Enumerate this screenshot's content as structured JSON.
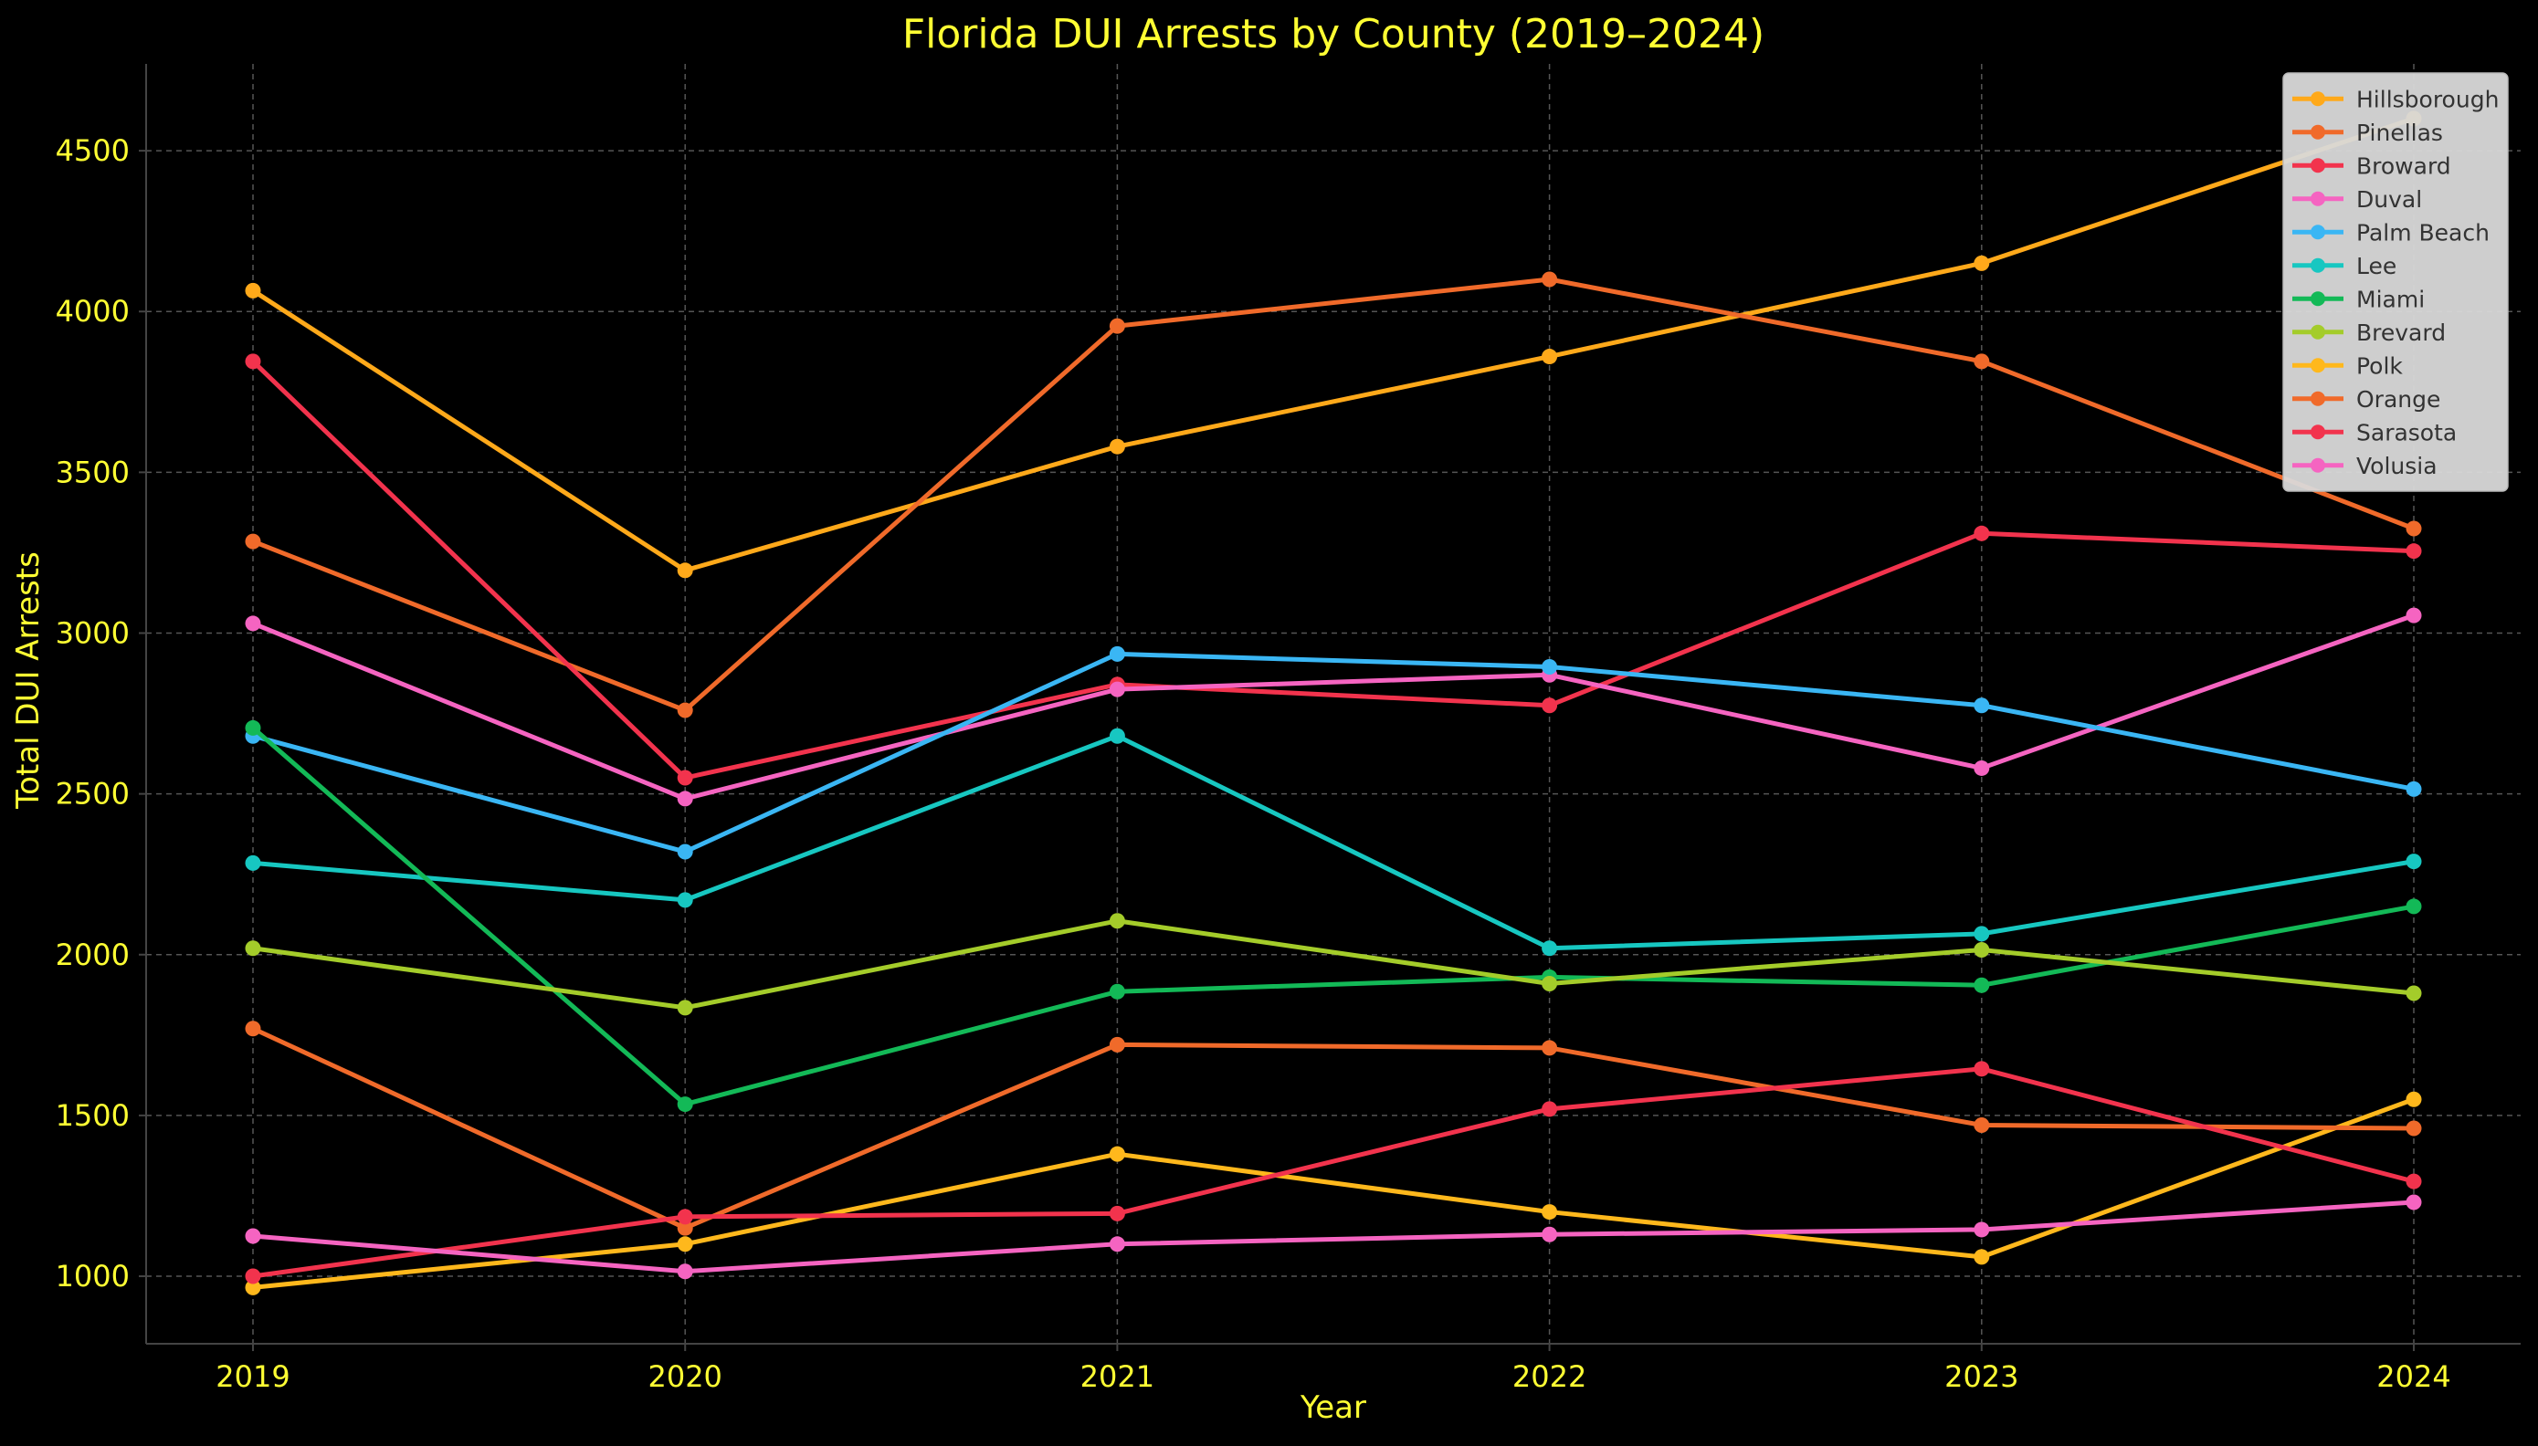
{
  "chart_data": {
    "type": "line",
    "title": "Florida DUI Arrests by County (2019–2024)",
    "xlabel": "Year",
    "ylabel": "Total DUI Arrests",
    "x": [
      "2019",
      "2020",
      "2021",
      "2022",
      "2023",
      "2024"
    ],
    "ylim": [
      790,
      4770
    ],
    "yticks": [
      1000,
      1500,
      2000,
      2500,
      3000,
      3500,
      4000,
      4500
    ],
    "grid": true,
    "legend_position": "top-right",
    "series": [
      {
        "name": "Hillsborough",
        "color": "#FFA91A",
        "values": [
          4065,
          3195,
          3580,
          3860,
          4150,
          4600
        ]
      },
      {
        "name": "Pinellas",
        "color": "#F06A2A",
        "values": [
          3285,
          2760,
          3955,
          4100,
          3845,
          3325
        ]
      },
      {
        "name": "Broward",
        "color": "#F2334D",
        "values": [
          3845,
          2550,
          2840,
          2775,
          3310,
          3255
        ]
      },
      {
        "name": "Duval",
        "color": "#F564C1",
        "values": [
          3030,
          2485,
          2825,
          2870,
          2580,
          3055
        ]
      },
      {
        "name": "Palm Beach",
        "color": "#3AB6F4",
        "values": [
          2680,
          2320,
          2935,
          2895,
          2775,
          2515
        ]
      },
      {
        "name": "Lee",
        "color": "#17C7C1",
        "values": [
          2285,
          2170,
          2680,
          2020,
          2065,
          2290
        ]
      },
      {
        "name": "Miami",
        "color": "#13B957",
        "values": [
          2705,
          1535,
          1885,
          1930,
          1905,
          2150
        ]
      },
      {
        "name": "Brevard",
        "color": "#A4CC2A",
        "values": [
          2020,
          1835,
          2105,
          1910,
          2015,
          1880
        ]
      },
      {
        "name": "Polk",
        "color": "#FFB81C",
        "values": [
          965,
          1100,
          1380,
          1200,
          1060,
          1550
        ]
      },
      {
        "name": "Orange",
        "color": "#F06A2A",
        "values": [
          1770,
          1150,
          1720,
          1710,
          1470,
          1460
        ]
      },
      {
        "name": "Sarasota",
        "color": "#F2334D",
        "values": [
          1000,
          1185,
          1195,
          1520,
          1645,
          1295
        ]
      },
      {
        "name": "Volusia",
        "color": "#F564C1",
        "values": [
          1125,
          1015,
          1100,
          1130,
          1145,
          1230
        ]
      }
    ]
  },
  "style": {
    "background": "#000000",
    "text_color": "#FFFF33",
    "grid_color": "#555555",
    "axis_color": "#444444",
    "legend_bg": "#D9D9D9",
    "legend_text": "#333333"
  }
}
